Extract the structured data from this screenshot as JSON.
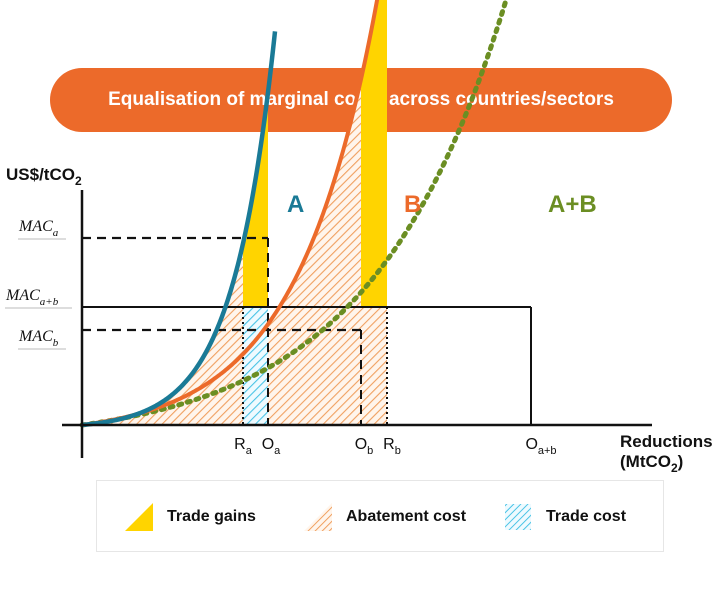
{
  "title": "Equalisation of marginal costs across countries/sectors",
  "axes": {
    "y_label": "US$/tCO",
    "y_label_sub": "2",
    "x_label_line1": "Reductions",
    "x_label_line2": "(MtCO",
    "x_label_line2_sub": "2",
    "x_label_line2_end": ")"
  },
  "y_ticks": {
    "mac_a": {
      "main": "MAC",
      "sub": "a"
    },
    "mac_ab": {
      "main": "MAC",
      "sub": "a+b"
    },
    "mac_b": {
      "main": "MAC",
      "sub": "b"
    }
  },
  "x_ticks": {
    "r_a": {
      "main": "R",
      "sub": "a"
    },
    "o_a": {
      "main": "O",
      "sub": "a"
    },
    "o_b": {
      "main": "O",
      "sub": "b"
    },
    "r_b": {
      "main": "R",
      "sub": "b"
    },
    "o_ab": {
      "main": "O",
      "sub": "a+b"
    }
  },
  "curves": {
    "a": {
      "label": "A",
      "color": "#1a7a96"
    },
    "b": {
      "label": "B",
      "color": "#ec6a2a"
    },
    "ab": {
      "label": "A+B",
      "color": "#6b8e23"
    }
  },
  "legend": {
    "trade_gains": {
      "label": "Trade gains",
      "color": "#ffd400",
      "icon": "triangle"
    },
    "abatement_cost": {
      "label": "Abatement cost",
      "color": "#f0a060",
      "icon": "hatched-triangle"
    },
    "trade_cost": {
      "label": "Trade cost",
      "color": "#49c3e6",
      "icon": "hatched-square"
    }
  },
  "colors": {
    "title_background": "#ec6a2a",
    "gain_fill": "#ffd400",
    "abatement_hatch": "#f0a060",
    "trade_hatch": "#49c3e6"
  }
}
